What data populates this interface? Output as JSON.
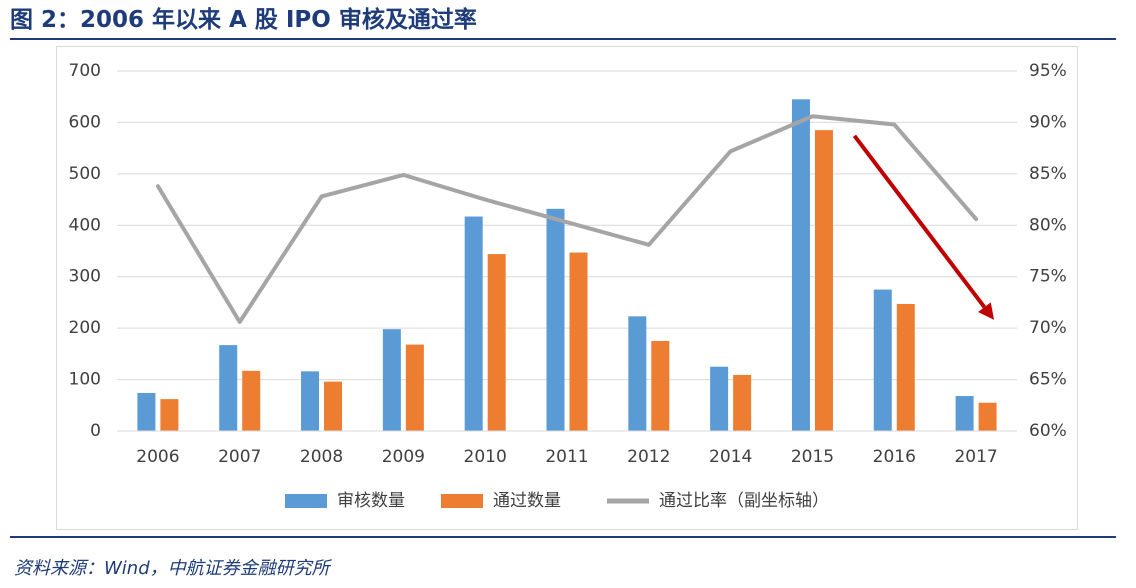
{
  "header": {
    "title": "图 2：2006 年以来 A 股 IPO 审核及通过率"
  },
  "footer": {
    "source": "资料来源：Wind，中航证券金融研究所"
  },
  "colors": {
    "review": "#5b9bd5",
    "approved": "#ed7d31",
    "rate": "#a5a5a5",
    "arrow": "#c00000",
    "grid": "#d9d9d9",
    "text": "#404040",
    "title": "#1f3c7a"
  },
  "chart_data": {
    "type": "bar",
    "title": "",
    "categories": [
      "2006",
      "2007",
      "2008",
      "2009",
      "2010",
      "2011",
      "2012",
      "2014",
      "2015",
      "2016",
      "2017"
    ],
    "series": [
      {
        "name": "审核数量",
        "type": "bar",
        "axis": "left",
        "values": [
          74,
          167,
          116,
          198,
          417,
          432,
          223,
          125,
          645,
          275,
          68
        ]
      },
      {
        "name": "通过数量",
        "type": "bar",
        "axis": "left",
        "values": [
          62,
          117,
          96,
          168,
          344,
          347,
          175,
          109,
          585,
          247,
          55
        ]
      },
      {
        "name": "通过比率（副坐标轴）",
        "type": "line",
        "axis": "right",
        "values": [
          83.8,
          70.6,
          82.8,
          84.9,
          82.5,
          80.3,
          78.1,
          87.2,
          90.6,
          89.8,
          80.6
        ]
      }
    ],
    "y_left": {
      "min": 0,
      "max": 700,
      "step": 100,
      "tick_labels": [
        "0",
        "100",
        "200",
        "300",
        "400",
        "500",
        "600",
        "700"
      ]
    },
    "y_right": {
      "min": 60,
      "max": 95,
      "step": 5,
      "tick_labels": [
        "60%",
        "65%",
        "70%",
        "75%",
        "80%",
        "85%",
        "90%",
        "95%"
      ]
    },
    "grid": true,
    "legend_position": "bottom",
    "annotation": {
      "type": "arrow",
      "from_category": "2015",
      "to_category": "2017",
      "from_value_right": 88.7,
      "to_value_right": 70.8
    }
  }
}
